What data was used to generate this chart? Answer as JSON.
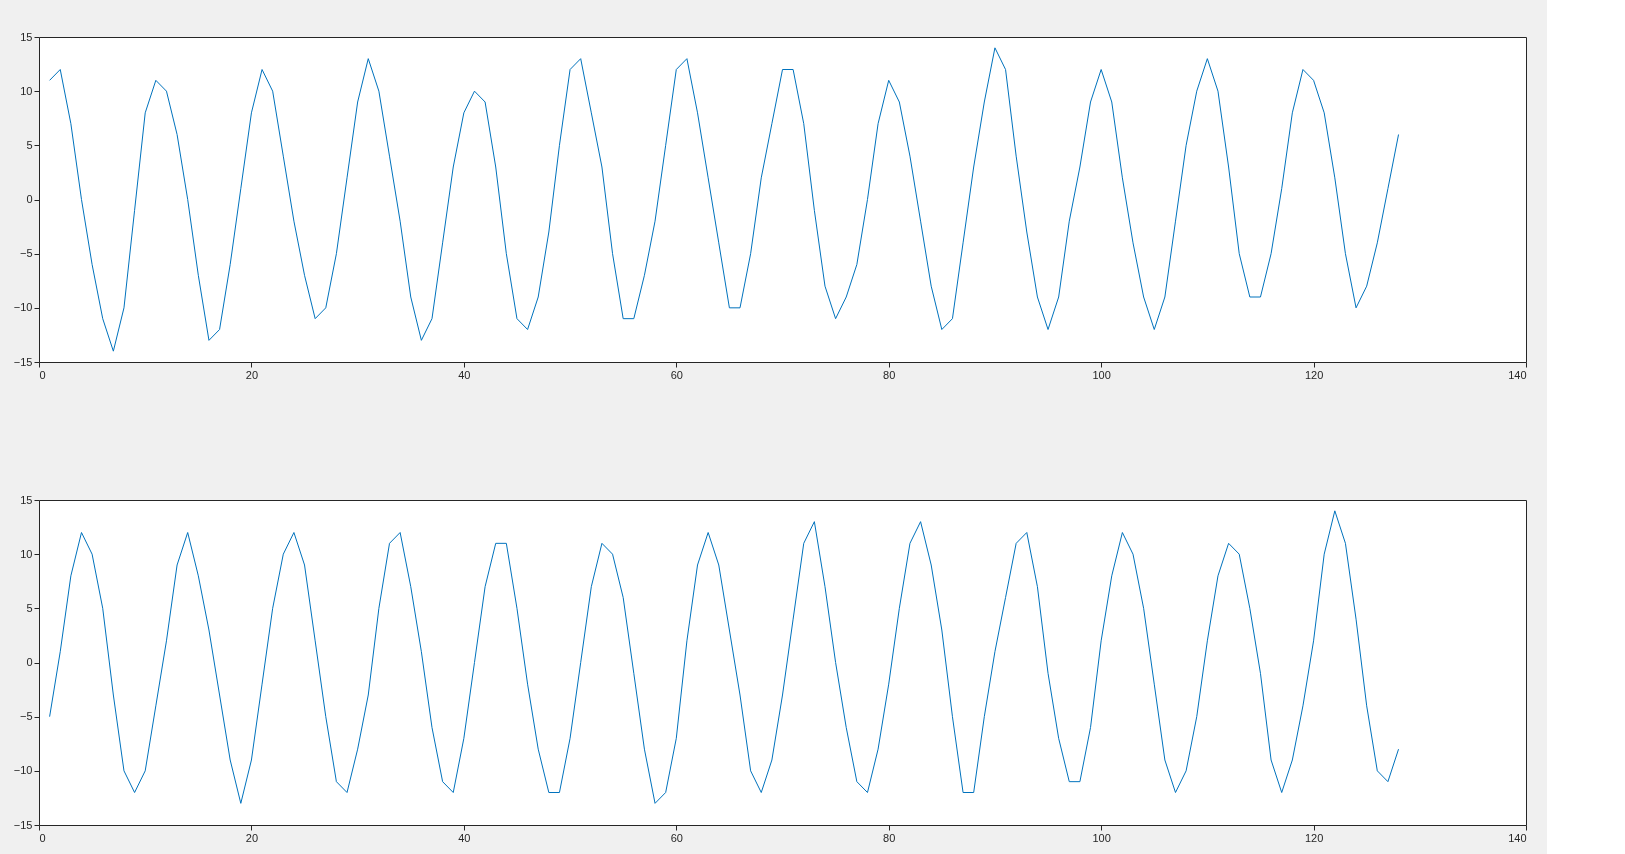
{
  "chart_data": [
    {
      "type": "line",
      "xlim": [
        0,
        140
      ],
      "ylim": [
        -15,
        15
      ],
      "xticks": [
        0,
        20,
        40,
        60,
        80,
        100,
        120,
        140
      ],
      "yticks": [
        -15,
        -10,
        -5,
        0,
        5,
        10,
        15
      ],
      "grid": false,
      "x": [
        1,
        2,
        3,
        4,
        5,
        6,
        7,
        8,
        9,
        10,
        11,
        12,
        13,
        14,
        15,
        16,
        17,
        18,
        19,
        20,
        21,
        22,
        23,
        24,
        25,
        26,
        27,
        28,
        29,
        30,
        31,
        32,
        33,
        34,
        35,
        36,
        37,
        38,
        39,
        40,
        41,
        42,
        43,
        44,
        45,
        46,
        47,
        48,
        49,
        50,
        51,
        52,
        53,
        54,
        55,
        56,
        57,
        58,
        59,
        60,
        61,
        62,
        63,
        64,
        65,
        66,
        67,
        68,
        69,
        70,
        71,
        72,
        73,
        74,
        75,
        76,
        77,
        78,
        79,
        80,
        81,
        82,
        83,
        84,
        85,
        86,
        87,
        88,
        89,
        90,
        91,
        92,
        93,
        94,
        95,
        96,
        97,
        98,
        99,
        100,
        101,
        102,
        103,
        104,
        105,
        106,
        107,
        108,
        109,
        110,
        111,
        112,
        113,
        114,
        115,
        116,
        117,
        118,
        119,
        120,
        121,
        122,
        123,
        124,
        125,
        126,
        127,
        128
      ],
      "series": [
        {
          "color": "#0072bd",
          "values": [
            11,
            12,
            7,
            0,
            -6,
            -11,
            -14,
            -10,
            -1,
            8,
            11,
            10,
            6,
            0,
            -7,
            -13,
            -12,
            -6,
            1,
            8,
            12,
            10,
            4,
            -2,
            -7,
            -11,
            -10,
            -5,
            2,
            9,
            13,
            10,
            4,
            -2,
            -9,
            -13,
            -11,
            -4,
            3,
            8,
            10,
            9,
            3,
            -5,
            -11,
            -12,
            -9,
            -3,
            5,
            12,
            13,
            8,
            3,
            -5,
            -11,
            -11,
            -7,
            -2,
            5,
            12,
            13,
            8,
            2,
            -4,
            -10,
            -10,
            -5,
            2,
            7,
            12,
            12,
            7,
            -1,
            -8,
            -11,
            -9,
            -6,
            0,
            7,
            11,
            9,
            4,
            -2,
            -8,
            -12,
            -11,
            -4,
            3,
            9,
            14,
            12,
            4,
            -3,
            -9,
            -12,
            -9,
            -2,
            3,
            9,
            12,
            9,
            2,
            -4,
            -9,
            -12,
            -9,
            -2,
            5,
            10,
            13,
            10,
            3,
            -5,
            -9,
            -9,
            -5,
            1,
            8,
            12,
            11,
            8,
            2,
            -5,
            -10,
            -8,
            -4,
            1,
            6
          ]
        }
      ]
    },
    {
      "type": "line",
      "xlim": [
        0,
        140
      ],
      "ylim": [
        -15,
        15
      ],
      "xticks": [
        0,
        20,
        40,
        60,
        80,
        100,
        120,
        140
      ],
      "yticks": [
        -15,
        -10,
        -5,
        0,
        5,
        10,
        15
      ],
      "grid": false,
      "x": [
        1,
        2,
        3,
        4,
        5,
        6,
        7,
        8,
        9,
        10,
        11,
        12,
        13,
        14,
        15,
        16,
        17,
        18,
        19,
        20,
        21,
        22,
        23,
        24,
        25,
        26,
        27,
        28,
        29,
        30,
        31,
        32,
        33,
        34,
        35,
        36,
        37,
        38,
        39,
        40,
        41,
        42,
        43,
        44,
        45,
        46,
        47,
        48,
        49,
        50,
        51,
        52,
        53,
        54,
        55,
        56,
        57,
        58,
        59,
        60,
        61,
        62,
        63,
        64,
        65,
        66,
        67,
        68,
        69,
        70,
        71,
        72,
        73,
        74,
        75,
        76,
        77,
        78,
        79,
        80,
        81,
        82,
        83,
        84,
        85,
        86,
        87,
        88,
        89,
        90,
        91,
        92,
        93,
        94,
        95,
        96,
        97,
        98,
        99,
        100,
        101,
        102,
        103,
        104,
        105,
        106,
        107,
        108,
        109,
        110,
        111,
        112,
        113,
        114,
        115,
        116,
        117,
        118,
        119,
        120,
        121,
        122,
        123,
        124,
        125,
        126,
        127,
        128
      ],
      "series": [
        {
          "color": "#0072bd",
          "values": [
            -5,
            1,
            8,
            12,
            10,
            5,
            -3,
            -10,
            -12,
            -10,
            -4,
            2,
            9,
            12,
            8,
            3,
            -3,
            -9,
            -13,
            -9,
            -2,
            5,
            10,
            12,
            9,
            2,
            -5,
            -11,
            -12,
            -8,
            -3,
            5,
            11,
            12,
            7,
            1,
            -6,
            -11,
            -12,
            -7,
            0,
            7,
            11,
            11,
            5,
            -2,
            -8,
            -12,
            -12,
            -7,
            0,
            7,
            11,
            10,
            6,
            -1,
            -8,
            -13,
            -12,
            -7,
            2,
            9,
            12,
            9,
            3,
            -3,
            -10,
            -12,
            -9,
            -3,
            4,
            11,
            13,
            7,
            0,
            -6,
            -11,
            -12,
            -8,
            -2,
            5,
            11,
            13,
            9,
            3,
            -5,
            -12,
            -12,
            -5,
            1,
            6,
            11,
            12,
            7,
            -1,
            -7,
            -11,
            -11,
            -6,
            2,
            8,
            12,
            10,
            5,
            -2,
            -9,
            -12,
            -10,
            -5,
            2,
            8,
            11,
            10,
            5,
            -1,
            -9,
            -12,
            -9,
            -4,
            2,
            10,
            14,
            11,
            4,
            -4,
            -10,
            -11,
            -8
          ]
        }
      ]
    }
  ]
}
